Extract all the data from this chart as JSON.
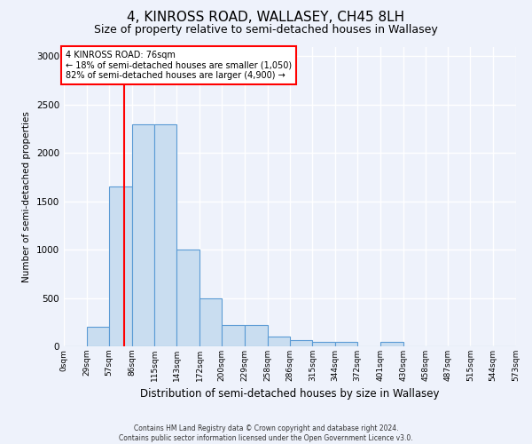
{
  "title": "4, KINROSS ROAD, WALLASEY, CH45 8LH",
  "subtitle": "Size of property relative to semi-detached houses in Wallasey",
  "xlabel": "Distribution of semi-detached houses by size in Wallasey",
  "ylabel": "Number of semi-detached properties",
  "bin_edges": [
    0,
    29,
    57,
    86,
    115,
    143,
    172,
    200,
    229,
    258,
    286,
    315,
    344,
    372,
    401,
    430,
    458,
    487,
    515,
    544,
    573
  ],
  "bin_labels": [
    "0sqm",
    "29sqm",
    "57sqm",
    "86sqm",
    "115sqm",
    "143sqm",
    "172sqm",
    "200sqm",
    "229sqm",
    "258sqm",
    "286sqm",
    "315sqm",
    "344sqm",
    "372sqm",
    "401sqm",
    "430sqm",
    "458sqm",
    "487sqm",
    "515sqm",
    "544sqm",
    "573sqm"
  ],
  "bar_heights": [
    0,
    200,
    1650,
    2300,
    2300,
    1000,
    500,
    225,
    225,
    100,
    65,
    50,
    50,
    0,
    50,
    0,
    0,
    0,
    0,
    0
  ],
  "bar_color": "#c9ddf0",
  "bar_edge_color": "#5b9bd5",
  "property_size": 76,
  "vline_color": "red",
  "annotation_text": "4 KINROSS ROAD: 76sqm\n← 18% of semi-detached houses are smaller (1,050)\n82% of semi-detached houses are larger (4,900) →",
  "annotation_box_color": "white",
  "annotation_border_color": "red",
  "ylim": [
    0,
    3100
  ],
  "yticks": [
    0,
    500,
    1000,
    1500,
    2000,
    2500,
    3000
  ],
  "footer_line1": "Contains HM Land Registry data © Crown copyright and database right 2024.",
  "footer_line2": "Contains public sector information licensed under the Open Government Licence v3.0.",
  "background_color": "#eef2fb",
  "plot_background": "#eef2fb",
  "grid_color": "#ffffff",
  "title_fontsize": 11,
  "subtitle_fontsize": 9
}
